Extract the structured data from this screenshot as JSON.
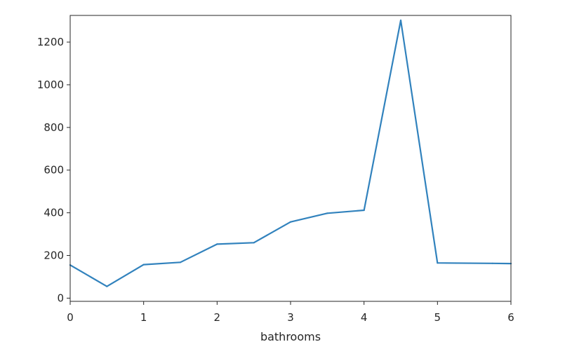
{
  "chart_data": {
    "type": "line",
    "xlabel": "bathrooms",
    "ylabel": "",
    "title": "",
    "xlim": [
      0,
      6
    ],
    "ylim": [
      -15,
      1325
    ],
    "xticks": [
      0,
      1,
      2,
      3,
      4,
      5,
      6
    ],
    "yticks": [
      0,
      200,
      400,
      600,
      800,
      1000,
      1200
    ],
    "grid": false,
    "legend": "none",
    "series": [
      {
        "color": "#3182bd",
        "x": [
          0,
          0.5,
          1,
          1.5,
          2,
          2.5,
          3,
          3.5,
          4,
          4.5,
          5,
          5.75,
          6
        ],
        "y": [
          155,
          55,
          157,
          168,
          253,
          260,
          357,
          398,
          412,
          1302,
          165,
          163,
          162
        ]
      }
    ]
  }
}
